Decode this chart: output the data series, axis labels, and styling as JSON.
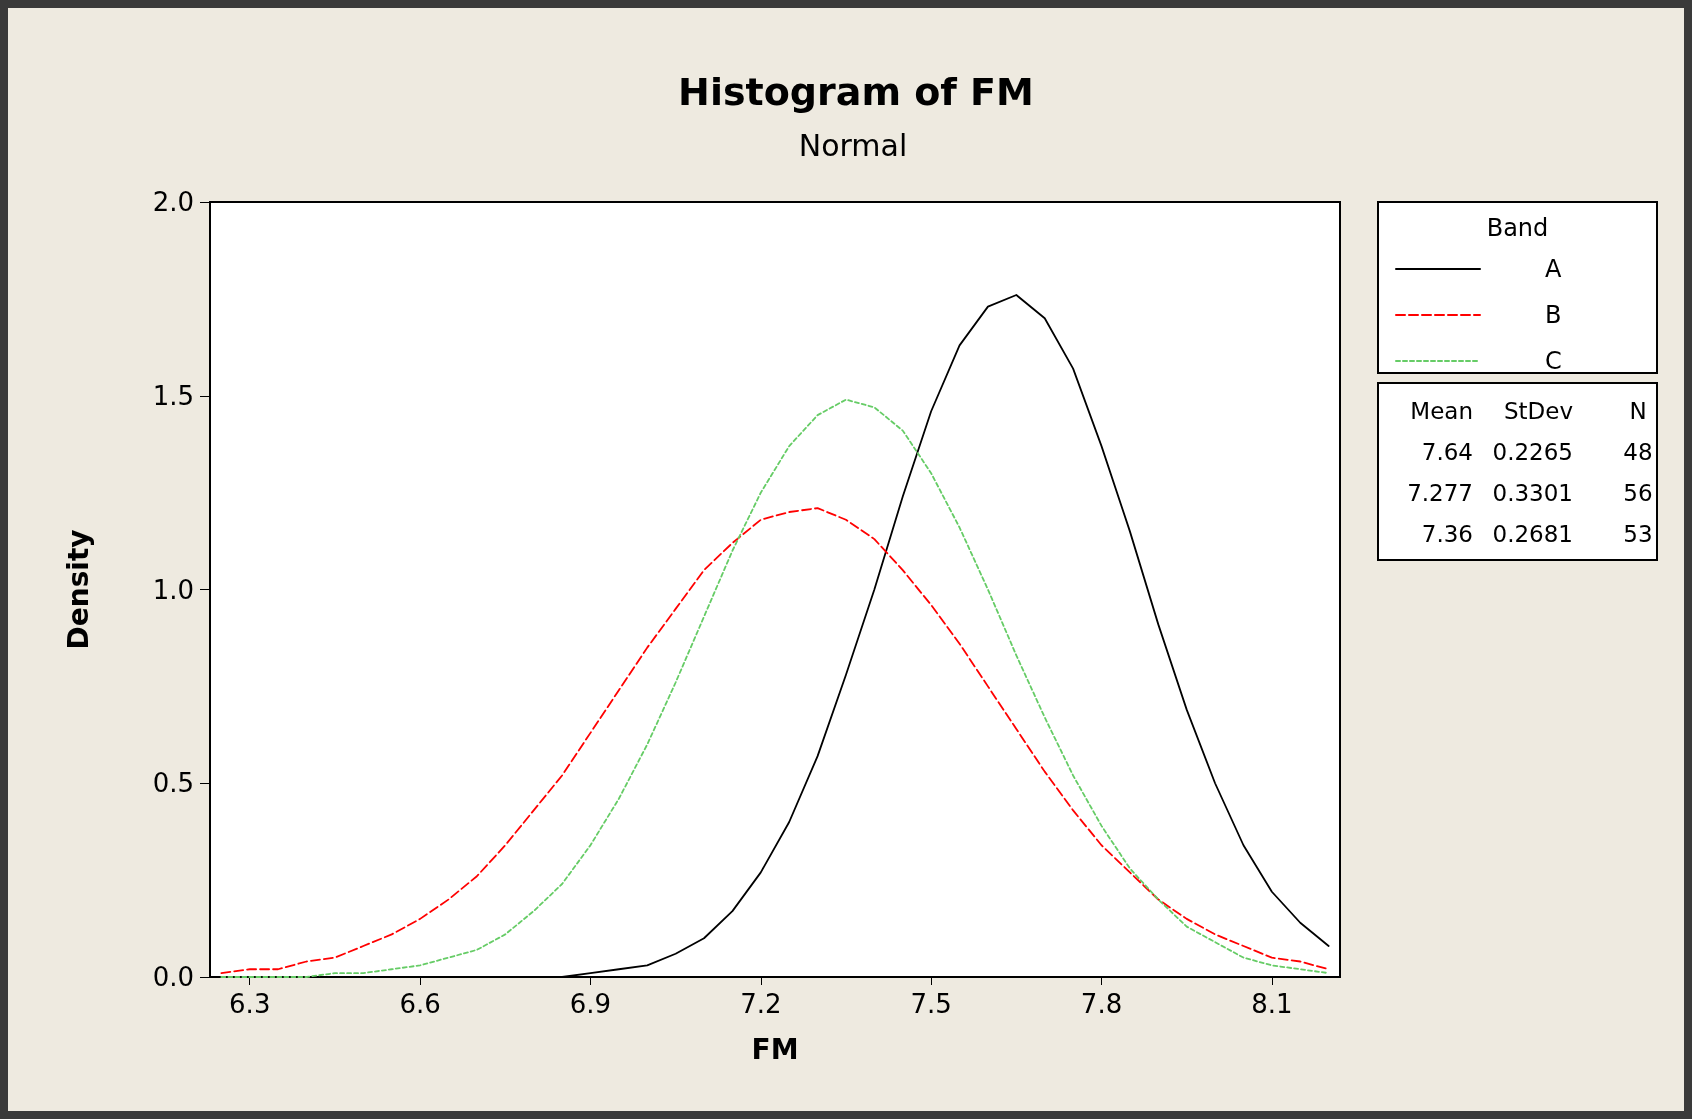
{
  "chart_data": {
    "type": "line",
    "title": "Histogram of FM",
    "subtitle": "Normal",
    "xlabel": "FM",
    "ylabel": "Density",
    "legend_title": "Band",
    "x": [
      6.25,
      6.3,
      6.35,
      6.4,
      6.45,
      6.5,
      6.55,
      6.6,
      6.65,
      6.7,
      6.75,
      6.8,
      6.85,
      6.9,
      6.95,
      7.0,
      7.05,
      7.1,
      7.15,
      7.2,
      7.25,
      7.3,
      7.35,
      7.4,
      7.45,
      7.5,
      7.55,
      7.6,
      7.65,
      7.7,
      7.75,
      7.8,
      7.85,
      7.9,
      7.95,
      8.0,
      8.05,
      8.1,
      8.15,
      8.2
    ],
    "series": [
      {
        "name": "A",
        "color": "#000000",
        "line_style": "solid",
        "values": [
          null,
          null,
          null,
          null,
          null,
          null,
          null,
          null,
          null,
          null,
          null,
          null,
          0.0,
          0.01,
          0.02,
          0.03,
          0.06,
          0.1,
          0.17,
          0.27,
          0.4,
          0.57,
          0.78,
          1.0,
          1.24,
          1.46,
          1.63,
          1.73,
          1.76,
          1.7,
          1.57,
          1.37,
          1.15,
          0.91,
          0.69,
          0.5,
          0.34,
          0.22,
          0.14,
          0.08
        ]
      },
      {
        "name": "B",
        "color": "#ff0000",
        "line_style": "dashed",
        "values": [
          0.01,
          0.02,
          0.02,
          0.04,
          0.05,
          0.08,
          0.11,
          0.15,
          0.2,
          0.26,
          0.34,
          0.43,
          0.52,
          0.63,
          0.74,
          0.85,
          0.95,
          1.05,
          1.12,
          1.18,
          1.2,
          1.21,
          1.18,
          1.13,
          1.05,
          0.96,
          0.86,
          0.75,
          0.64,
          0.53,
          0.43,
          0.34,
          0.27,
          0.2,
          0.15,
          0.11,
          0.08,
          0.05,
          0.04,
          0.02
        ]
      },
      {
        "name": "C",
        "color": "#66cc66",
        "line_style": "dotted",
        "values": [
          0.0,
          0.0,
          0.0,
          0.0,
          0.01,
          0.01,
          0.02,
          0.03,
          0.05,
          0.07,
          0.11,
          0.17,
          0.24,
          0.34,
          0.46,
          0.6,
          0.76,
          0.93,
          1.1,
          1.25,
          1.37,
          1.45,
          1.49,
          1.47,
          1.41,
          1.3,
          1.16,
          1.0,
          0.83,
          0.67,
          0.52,
          0.39,
          0.28,
          0.2,
          0.13,
          0.09,
          0.05,
          0.03,
          0.02,
          0.01
        ]
      }
    ],
    "xlim": [
      6.23,
      8.22
    ],
    "xticks": [
      6.3,
      6.6,
      6.9,
      7.2,
      7.5,
      7.8,
      8.1
    ],
    "ylim": [
      0,
      2
    ],
    "yticks": [
      {
        "value": 0,
        "label": "0.0"
      },
      0.5,
      {
        "value": 1,
        "label": "1.0"
      },
      1.5,
      {
        "value": 2,
        "label": "2.0"
      }
    ],
    "annotations": [
      "Mean",
      "StDev",
      "N",
      "7.64",
      "0.2265",
      "48",
      "7.277",
      "0.3301",
      "56",
      "7.36",
      "0.2681",
      "53"
    ],
    "grid": false,
    "legend": "right",
    "marker": "none"
  }
}
